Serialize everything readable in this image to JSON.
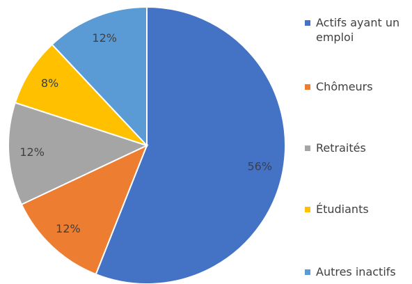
{
  "chart_data": {
    "type": "pie",
    "categories": [
      "Actifs ayant un emploi",
      "Chômeurs",
      "Retraités",
      "Étudiants",
      "Autres inactifs"
    ],
    "values": [
      56,
      12,
      12,
      8,
      12
    ],
    "value_labels": [
      "56%",
      "12%",
      "12%",
      "8%",
      "12%"
    ],
    "colors": [
      "#4472c4",
      "#ed7d31",
      "#a5a5a5",
      "#ffc000",
      "#5b9bd5"
    ],
    "legend": "right"
  }
}
